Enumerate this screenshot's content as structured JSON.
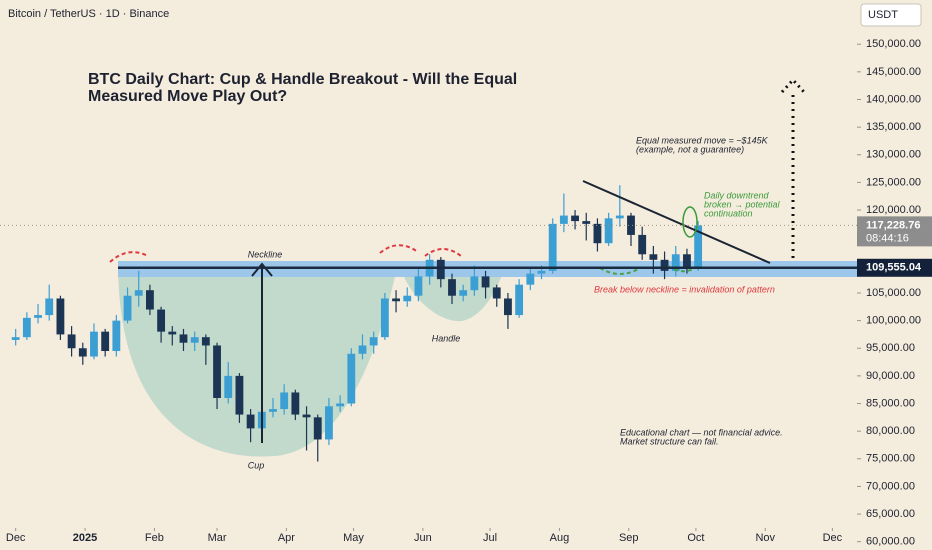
{
  "chart_data": {
    "type": "candlestick",
    "header": "Bitcoin / TetherUS · 1D · Binance",
    "currency": "USDT",
    "title": [
      "BTC Daily Chart: Cup & Handle Breakout - Will the Equal",
      "Measured Move Play Out?"
    ],
    "annotations": {
      "neckline": "Neckline",
      "cup": "Cup",
      "handle": "Handle",
      "measured_move": [
        "Equal measured move = ~$145K",
        "(example, not a guarantee)"
      ],
      "breakout": [
        "Daily downtrend",
        "broken → potential",
        "continuation"
      ],
      "invalidation": "Break below neckline = invalidation of pattern",
      "disclaimer": [
        "Educational chart — not financial advice.",
        "Market structure can fail."
      ]
    },
    "neckline": {
      "value": 109555.04,
      "label": "109,555.04"
    },
    "current_price": {
      "value": 117228.76,
      "label": "117,228.76"
    },
    "countdown": "08:44:16",
    "up_color": "#3b9fd4",
    "down_color": "#1c3554",
    "xlim": [
      -7,
      376
    ],
    "xticks": [
      {
        "value": 0,
        "label": "Dec"
      },
      {
        "value": 31,
        "label": "2025"
      },
      {
        "value": 62,
        "label": "Feb"
      },
      {
        "value": 90,
        "label": "Mar"
      },
      {
        "value": 121,
        "label": "Apr"
      },
      {
        "value": 151,
        "label": "May"
      },
      {
        "value": 182,
        "label": "Jun"
      },
      {
        "value": 212,
        "label": "Jul"
      },
      {
        "value": 243,
        "label": "Aug"
      },
      {
        "value": 274,
        "label": "Sep"
      },
      {
        "value": 304,
        "label": "Oct"
      },
      {
        "value": 335,
        "label": "Nov"
      },
      {
        "value": 365,
        "label": "Dec"
      }
    ],
    "ylim": [
      58500,
      158000
    ],
    "yticks": [
      {
        "value": 60000,
        "label": "60,000.00"
      },
      {
        "value": 65000,
        "label": "65,000.00"
      },
      {
        "value": 70000,
        "label": "70,000.00"
      },
      {
        "value": 75000,
        "label": "75,000.00"
      },
      {
        "value": 80000,
        "label": "80,000.00"
      },
      {
        "value": 85000,
        "label": "85,000.00"
      },
      {
        "value": 90000,
        "label": "90,000.00"
      },
      {
        "value": 95000,
        "label": "95,000.00"
      },
      {
        "value": 100000,
        "label": "100,000.00"
      },
      {
        "value": 105000,
        "label": "105,000.00"
      },
      {
        "value": 110000,
        "label": "110,000.00"
      },
      {
        "value": 115000,
        "label": "115,000.00"
      },
      {
        "value": 120000,
        "label": "120,000.00"
      },
      {
        "value": 125000,
        "label": "125,000.00"
      },
      {
        "value": 130000,
        "label": "130,000.00"
      },
      {
        "value": 135000,
        "label": "135,000.00"
      },
      {
        "value": 140000,
        "label": "140,000.00"
      },
      {
        "value": 145000,
        "label": "145,000.00"
      },
      {
        "value": 150000,
        "label": "150,000.00"
      }
    ],
    "x": [
      0,
      5,
      10,
      15,
      20,
      25,
      30,
      35,
      40,
      45,
      50,
      55,
      60,
      65,
      70,
      75,
      80,
      85,
      90,
      95,
      100,
      105,
      110,
      115,
      120,
      125,
      130,
      135,
      140,
      145,
      150,
      155,
      160,
      165,
      170,
      175,
      180,
      185,
      190,
      195,
      200,
      205,
      210,
      215,
      220,
      225,
      230,
      235,
      240,
      245,
      250,
      255,
      260,
      265,
      270,
      275,
      280,
      285,
      290,
      295,
      300,
      305
    ],
    "ohlc": [
      [
        96500,
        98500,
        95500,
        97000
      ],
      [
        97000,
        101500,
        96500,
        100500
      ],
      [
        100500,
        103000,
        99500,
        101000
      ],
      [
        101000,
        106500,
        100000,
        104000
      ],
      [
        104000,
        104500,
        96500,
        97500
      ],
      [
        97500,
        99000,
        93500,
        95000
      ],
      [
        95000,
        96000,
        92000,
        93500
      ],
      [
        93500,
        99500,
        93000,
        98000
      ],
      [
        98000,
        98500,
        93500,
        94500
      ],
      [
        94500,
        101000,
        93500,
        100000
      ],
      [
        100000,
        106000,
        99500,
        104500
      ],
      [
        104500,
        109000,
        102500,
        105500
      ],
      [
        105500,
        106500,
        101000,
        102000
      ],
      [
        102000,
        102500,
        96000,
        98000
      ],
      [
        98000,
        99000,
        95500,
        97500
      ],
      [
        97500,
        98500,
        94500,
        96000
      ],
      [
        96000,
        98000,
        94500,
        97000
      ],
      [
        97000,
        97500,
        92000,
        95500
      ],
      [
        95500,
        96000,
        84000,
        86000
      ],
      [
        86000,
        92500,
        85000,
        90000
      ],
      [
        90000,
        90500,
        81500,
        83000
      ],
      [
        83000,
        84000,
        78000,
        80500
      ],
      [
        80500,
        85000,
        79500,
        83500
      ],
      [
        83500,
        86000,
        82500,
        84000
      ],
      [
        84000,
        88500,
        83000,
        87000
      ],
      [
        87000,
        87500,
        82000,
        83000
      ],
      [
        83000,
        84500,
        76500,
        82500
      ],
      [
        82500,
        83000,
        74500,
        78500
      ],
      [
        78500,
        86000,
        77500,
        84500
      ],
      [
        84500,
        86500,
        83500,
        85000
      ],
      [
        85000,
        95000,
        84500,
        94000
      ],
      [
        94000,
        97500,
        93000,
        95500
      ],
      [
        95500,
        98000,
        94000,
        97000
      ],
      [
        97000,
        105000,
        96500,
        104000
      ],
      [
        104000,
        105500,
        101500,
        103500
      ],
      [
        103500,
        106000,
        102500,
        104500
      ],
      [
        104500,
        109500,
        103500,
        108000
      ],
      [
        108000,
        112000,
        106500,
        111000
      ],
      [
        111000,
        111500,
        106000,
        107500
      ],
      [
        107500,
        108500,
        103000,
        104500
      ],
      [
        104500,
        106500,
        103500,
        105500
      ],
      [
        105500,
        110000,
        104500,
        108000
      ],
      [
        108000,
        109000,
        104000,
        106000
      ],
      [
        106000,
        106500,
        102500,
        104000
      ],
      [
        104000,
        105000,
        98500,
        101000
      ],
      [
        101000,
        107500,
        100500,
        106500
      ],
      [
        106500,
        109500,
        105500,
        108500
      ],
      [
        108500,
        110000,
        107500,
        109000
      ],
      [
        109000,
        118500,
        108500,
        117500
      ],
      [
        117500,
        123000,
        116000,
        119000
      ],
      [
        119000,
        120000,
        116500,
        118000
      ],
      [
        118000,
        119500,
        114500,
        117500
      ],
      [
        117500,
        118500,
        112500,
        114000
      ],
      [
        114000,
        119500,
        113500,
        118500
      ],
      [
        118500,
        124500,
        117000,
        119000
      ],
      [
        119000,
        119500,
        113500,
        115500
      ],
      [
        115500,
        117000,
        111000,
        112000
      ],
      [
        112000,
        113500,
        108500,
        111000
      ],
      [
        111000,
        112500,
        107500,
        109000
      ],
      [
        109000,
        113500,
        108000,
        112000
      ],
      [
        112000,
        113000,
        108500,
        109500
      ],
      [
        109500,
        118000,
        109000,
        117228.76
      ]
    ]
  }
}
